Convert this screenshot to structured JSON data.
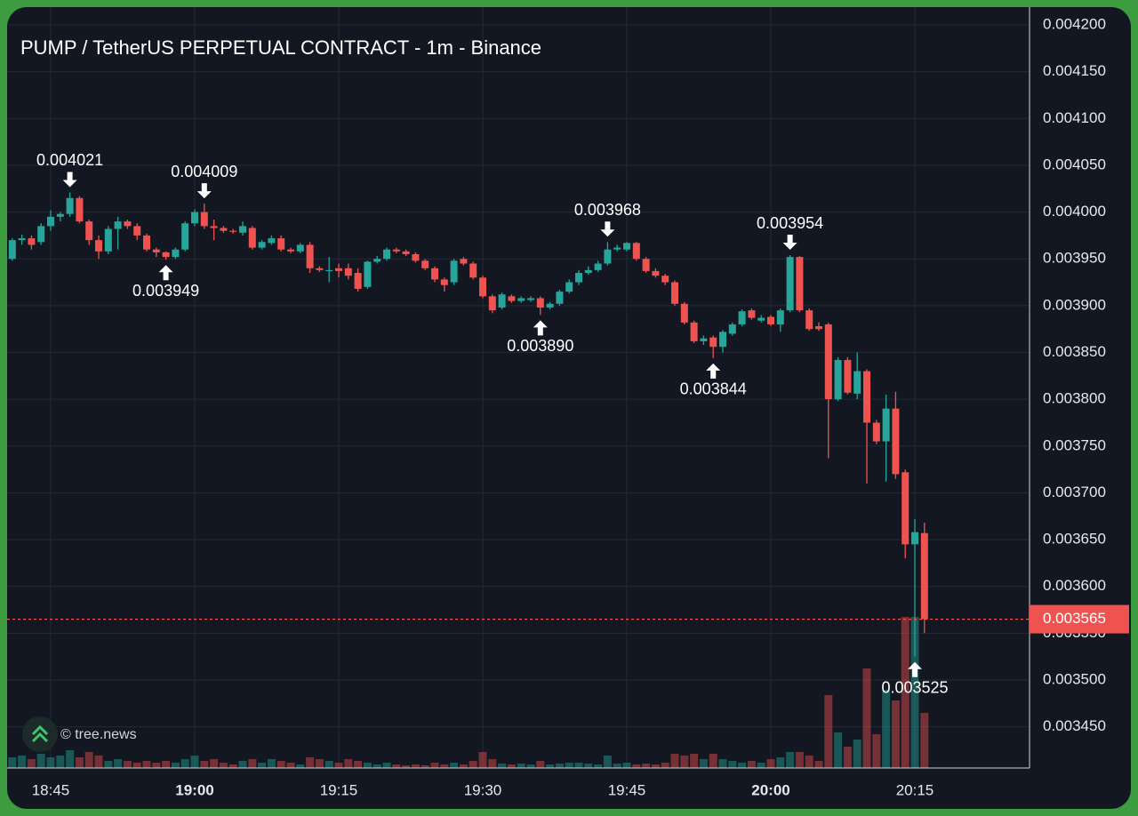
{
  "chart_data": {
    "type": "candlestick",
    "title": "PUMP / TetherUS PERPETUAL CONTRACT - 1m - Binance",
    "watermark": "© tree.news",
    "up_color": "#26a69a",
    "down_color": "#ef5350",
    "grid": true,
    "ylim": [
      0.003406,
      0.004219
    ],
    "yticks": [
      {
        "value": 0.0042,
        "label": "0.004200"
      },
      {
        "value": 0.00415,
        "label": "0.004150"
      },
      {
        "value": 0.0041,
        "label": "0.004100"
      },
      {
        "value": 0.00405,
        "label": "0.004050"
      },
      {
        "value": 0.004,
        "label": "0.004000"
      },
      {
        "value": 0.00395,
        "label": "0.003950"
      },
      {
        "value": 0.0039,
        "label": "0.003900"
      },
      {
        "value": 0.00385,
        "label": "0.003850"
      },
      {
        "value": 0.0038,
        "label": "0.003800"
      },
      {
        "value": 0.00375,
        "label": "0.003750"
      },
      {
        "value": 0.0037,
        "label": "0.003700"
      },
      {
        "value": 0.00365,
        "label": "0.003650"
      },
      {
        "value": 0.0036,
        "label": "0.003600"
      },
      {
        "value": 0.00355,
        "label": "0.003550"
      },
      {
        "value": 0.0035,
        "label": "0.003500"
      },
      {
        "value": 0.00345,
        "label": "0.003450"
      }
    ],
    "categories": [
      null,
      null,
      null,
      null,
      "18:45",
      null,
      null,
      null,
      null,
      null,
      null,
      null,
      null,
      null,
      null,
      null,
      null,
      null,
      null,
      "19:00",
      null,
      null,
      null,
      null,
      null,
      null,
      null,
      null,
      null,
      null,
      null,
      null,
      null,
      null,
      "19:15",
      null,
      null,
      null,
      null,
      null,
      null,
      null,
      null,
      null,
      null,
      null,
      null,
      null,
      null,
      "19:30",
      null,
      null,
      null,
      null,
      null,
      null,
      null,
      null,
      null,
      null,
      null,
      null,
      null,
      null,
      "19:45",
      null,
      null,
      null,
      null,
      null,
      null,
      null,
      null,
      null,
      null,
      null,
      null,
      null,
      null,
      "20:00",
      null,
      null,
      null,
      null,
      null,
      null,
      null,
      null,
      null,
      null,
      null,
      null,
      null,
      null,
      "20:15",
      null
    ],
    "bold_ticks": [
      19,
      79
    ],
    "open": [
      0.00395,
      0.00397,
      0.003972,
      0.003968,
      0.003985,
      0.003995,
      0.003998,
      0.004015,
      0.00399,
      0.00397,
      0.003958,
      0.003982,
      0.00399,
      0.003985,
      0.003975,
      0.00396,
      0.003957,
      0.003952,
      0.00396,
      0.003988,
      0.004,
      0.003985,
      0.003983,
      0.00398,
      0.003978,
      0.003983,
      0.003962,
      0.003967,
      0.003972,
      0.00396,
      0.003958,
      0.003965,
      0.00394,
      0.003937,
      0.00394,
      0.00394,
      0.003935,
      0.00392,
      0.003947,
      0.00395,
      0.00396,
      0.003958,
      0.003955,
      0.003948,
      0.00394,
      0.003928,
      0.003925,
      0.00395,
      0.003945,
      0.00393,
      0.00391,
      0.003898,
      0.00391,
      0.003905,
      0.003906,
      0.003908,
      0.003898,
      0.003902,
      0.003915,
      0.003925,
      0.003935,
      0.003938,
      0.003945,
      0.00396,
      0.00396,
      0.003967,
      0.00395,
      0.003937,
      0.003932,
      0.003925,
      0.003902,
      0.003882,
      0.003862,
      0.003866,
      0.003856,
      0.00387,
      0.00388,
      0.003895,
      0.003884,
      0.003888,
      0.00388,
      0.003895,
      0.003952,
      0.003895,
      0.003878,
      0.00388,
      0.0038,
      0.003842,
      0.003806,
      0.00383,
      0.003775,
      0.003755,
      0.00379,
      0.003722,
      0.003645,
      0.003657
    ],
    "high": [
      0.003972,
      0.003976,
      0.003975,
      0.003988,
      0.004002,
      0.004,
      0.004021,
      0.004017,
      0.003992,
      0.003975,
      0.003985,
      0.003995,
      0.003992,
      0.003988,
      0.003977,
      0.003962,
      0.003958,
      0.003962,
      0.00399,
      0.004003,
      0.004009,
      0.003992,
      0.003985,
      0.003982,
      0.00399,
      0.003985,
      0.00397,
      0.003975,
      0.003975,
      0.003962,
      0.003967,
      0.003968,
      0.003942,
      0.003952,
      0.003945,
      0.003945,
      0.00394,
      0.003948,
      0.003953,
      0.003962,
      0.003962,
      0.00396,
      0.003957,
      0.00395,
      0.003942,
      0.00393,
      0.00395,
      0.003952,
      0.003947,
      0.003932,
      0.003912,
      0.003914,
      0.003912,
      0.00391,
      0.00391,
      0.00391,
      0.003904,
      0.003917,
      0.003928,
      0.003938,
      0.003942,
      0.003948,
      0.003968,
      0.003965,
      0.003968,
      0.003968,
      0.003952,
      0.00394,
      0.003934,
      0.003927,
      0.003904,
      0.003884,
      0.003868,
      0.003868,
      0.003874,
      0.003882,
      0.003896,
      0.003897,
      0.00389,
      0.00389,
      0.003897,
      0.003954,
      0.003953,
      0.003897,
      0.003882,
      0.003882,
      0.003845,
      0.003845,
      0.00385,
      0.003832,
      0.003778,
      0.003805,
      0.003808,
      0.003725,
      0.003672,
      0.003668
    ],
    "low": [
      0.003948,
      0.003965,
      0.00396,
      0.003965,
      0.00398,
      0.00399,
      0.003995,
      0.003988,
      0.003965,
      0.00395,
      0.003955,
      0.00396,
      0.003982,
      0.00397,
      0.003958,
      0.003952,
      0.003949,
      0.00395,
      0.003958,
      0.003985,
      0.003982,
      0.00397,
      0.003978,
      0.003977,
      0.003975,
      0.00396,
      0.00396,
      0.003965,
      0.003958,
      0.003956,
      0.003956,
      0.003935,
      0.003936,
      0.003925,
      0.00393,
      0.003928,
      0.003915,
      0.003918,
      0.003945,
      0.003948,
      0.003956,
      0.003953,
      0.003946,
      0.003938,
      0.003925,
      0.003915,
      0.003922,
      0.003943,
      0.003928,
      0.003908,
      0.003892,
      0.003896,
      0.003903,
      0.003903,
      0.003904,
      0.00389,
      0.003896,
      0.0039,
      0.003913,
      0.003922,
      0.003933,
      0.003936,
      0.003943,
      0.003958,
      0.003958,
      0.003948,
      0.003935,
      0.00393,
      0.003922,
      0.0039,
      0.00388,
      0.00386,
      0.003858,
      0.003844,
      0.00385,
      0.003868,
      0.003878,
      0.003885,
      0.003882,
      0.003878,
      0.003872,
      0.003893,
      0.003893,
      0.003873,
      0.003873,
      0.003737,
      0.003798,
      0.003805,
      0.0038,
      0.00371,
      0.003752,
      0.003712,
      0.003715,
      0.00363,
      0.003525,
      0.00355
    ],
    "close": [
      0.00397,
      0.003972,
      0.003965,
      0.003985,
      0.003995,
      0.003998,
      0.004015,
      0.00399,
      0.00397,
      0.003958,
      0.003982,
      0.00399,
      0.003985,
      0.003975,
      0.00396,
      0.003957,
      0.003952,
      0.00396,
      0.003988,
      0.004,
      0.003985,
      0.003983,
      0.00398,
      0.003979,
      0.003985,
      0.003962,
      0.003968,
      0.003972,
      0.00396,
      0.003958,
      0.003965,
      0.00394,
      0.003938,
      0.003938,
      0.003937,
      0.003932,
      0.003918,
      0.003947,
      0.00395,
      0.00396,
      0.003958,
      0.003955,
      0.003948,
      0.00394,
      0.003928,
      0.003922,
      0.003948,
      0.003945,
      0.00393,
      0.00391,
      0.003895,
      0.003912,
      0.003905,
      0.003908,
      0.003908,
      0.003898,
      0.003902,
      0.003915,
      0.003925,
      0.003935,
      0.003938,
      0.003945,
      0.00396,
      0.003962,
      0.003967,
      0.00395,
      0.003937,
      0.003932,
      0.003925,
      0.003902,
      0.003882,
      0.003862,
      0.003865,
      0.003856,
      0.003872,
      0.00388,
      0.003894,
      0.003887,
      0.003887,
      0.00388,
      0.003895,
      0.003952,
      0.003895,
      0.003875,
      0.003875,
      0.0038,
      0.003842,
      0.003807,
      0.00383,
      0.003775,
      0.003755,
      0.00379,
      0.00372,
      0.003645,
      0.003658,
      0.003565
    ],
    "volume": [
      12,
      14,
      10,
      16,
      12,
      14,
      20,
      12,
      18,
      14,
      8,
      10,
      8,
      6,
      8,
      6,
      8,
      6,
      10,
      14,
      8,
      10,
      6,
      4,
      8,
      10,
      6,
      10,
      8,
      6,
      4,
      12,
      10,
      8,
      6,
      10,
      8,
      6,
      4,
      6,
      4,
      3,
      4,
      3,
      6,
      4,
      6,
      4,
      8,
      18,
      10,
      5,
      4,
      5,
      4,
      8,
      4,
      5,
      6,
      6,
      5,
      4,
      14,
      5,
      6,
      4,
      5,
      4,
      6,
      16,
      14,
      16,
      10,
      16,
      10,
      8,
      6,
      8,
      6,
      10,
      12,
      18,
      18,
      14,
      8,
      82,
      40,
      24,
      32,
      112,
      38,
      88,
      76,
      170,
      170,
      62
    ],
    "annotations": [
      {
        "index": 6,
        "kind": "high",
        "value": 0.004021,
        "label": "0.004021"
      },
      {
        "index": 16,
        "kind": "low",
        "value": 0.003949,
        "label": "0.003949"
      },
      {
        "index": 20,
        "kind": "high",
        "value": 0.004009,
        "label": "0.004009"
      },
      {
        "index": 55,
        "kind": "low",
        "value": 0.00389,
        "label": "0.003890"
      },
      {
        "index": 62,
        "kind": "high",
        "value": 0.003968,
        "label": "0.003968"
      },
      {
        "index": 73,
        "kind": "low",
        "value": 0.003844,
        "label": "0.003844"
      },
      {
        "index": 81,
        "kind": "high",
        "value": 0.003954,
        "label": "0.003954"
      },
      {
        "index": 94,
        "kind": "low",
        "value": 0.003525,
        "label": "0.003525"
      }
    ],
    "last_price": {
      "value": 0.003565,
      "label": "0.003565"
    }
  }
}
